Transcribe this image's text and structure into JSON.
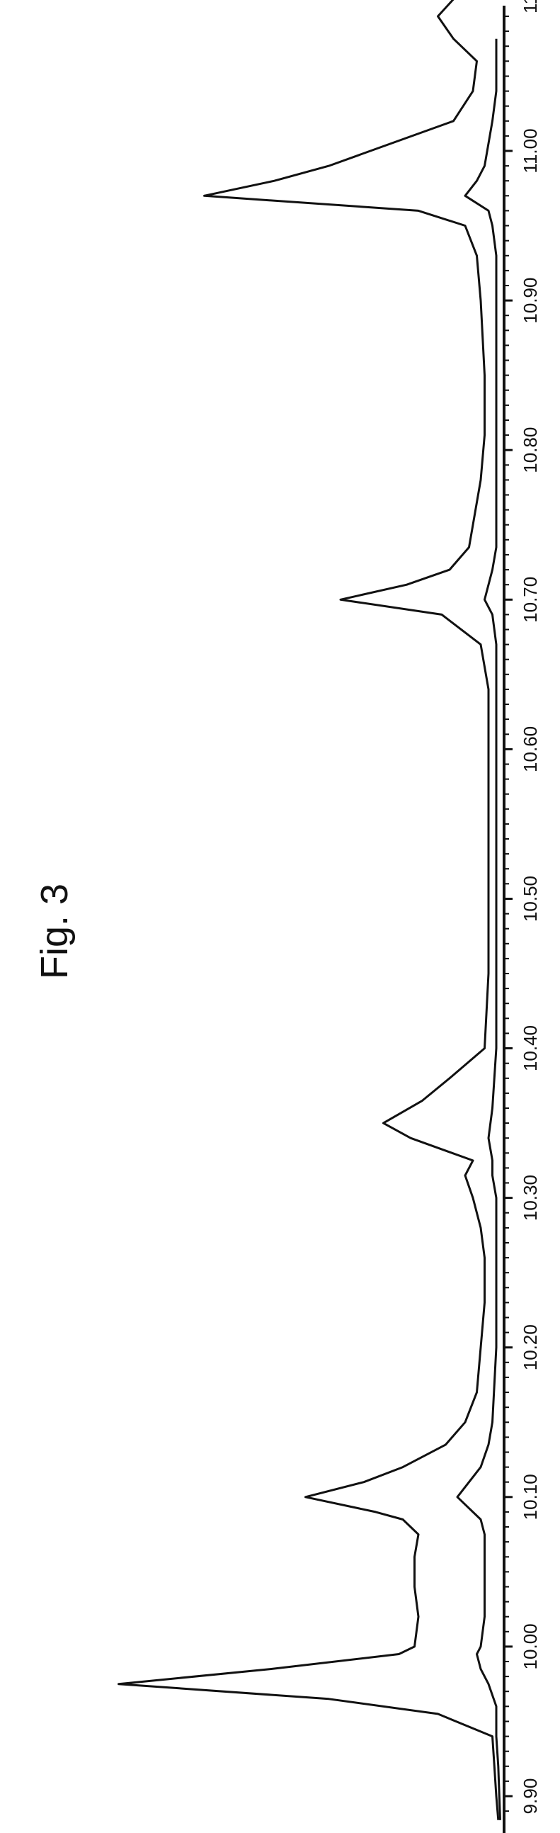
{
  "figure": {
    "title": "Fig. 3"
  },
  "chart_data": {
    "type": "line",
    "title": "Fig. 3",
    "xlabel": "",
    "ylabel": "",
    "x_ticks": [
      "9.90",
      "10.00",
      "10.10",
      "10.20",
      "10.30",
      "10.40",
      "10.50",
      "10.60",
      "10.70",
      "10.80",
      "10.90",
      "11.00",
      "11."
    ],
    "xlim": [
      9.884,
      11.13
    ],
    "ylim": [
      0,
      100
    ],
    "grid": false,
    "orientation": "rotated-90",
    "colors": {
      "line": "#111111",
      "axis": "#111111"
    },
    "series": [
      {
        "x": [
          9.884,
          9.9,
          9.92,
          9.94,
          9.955,
          9.965,
          9.975,
          9.985,
          9.995,
          10.0,
          10.02,
          10.04,
          10.06,
          10.075,
          10.085,
          10.09,
          10.1,
          10.11,
          10.12,
          10.135,
          10.15,
          10.17,
          10.2,
          10.23,
          10.26,
          10.28,
          10.3,
          10.315,
          10.325,
          10.34,
          10.35,
          10.365,
          10.38,
          10.4,
          10.45,
          10.5,
          10.55,
          10.6,
          10.64,
          10.67,
          10.69,
          10.7,
          10.71,
          10.72,
          10.735,
          10.75,
          10.78,
          10.81,
          10.85,
          10.9,
          10.93,
          10.95,
          10.96,
          10.97,
          10.98,
          10.99,
          11.02,
          11.04,
          11.06,
          11.075,
          11.09,
          11.11,
          11.13
        ],
        "values": [
          1.5,
          2.0,
          2.5,
          3.0,
          17,
          45,
          99,
          60,
          27,
          23,
          22,
          23,
          23,
          22,
          26,
          33,
          51,
          36,
          26,
          15,
          10,
          7,
          6,
          5,
          5,
          6,
          8,
          10,
          8,
          24,
          31,
          21,
          14,
          5,
          4,
          4,
          4,
          4,
          4,
          6,
          16,
          42,
          25,
          14,
          9,
          8,
          6,
          5,
          5,
          6,
          7,
          10,
          22,
          77,
          59,
          45,
          13,
          8,
          7,
          13,
          17,
          10,
          8
        ]
      },
      {
        "x": [
          9.884,
          9.92,
          9.94,
          9.96,
          9.975,
          9.985,
          9.995,
          10.0,
          10.02,
          10.04,
          10.06,
          10.075,
          10.085,
          10.09,
          10.1,
          10.11,
          10.12,
          10.135,
          10.15,
          10.2,
          10.25,
          10.28,
          10.3,
          10.315,
          10.325,
          10.34,
          10.36,
          10.4,
          10.45,
          10.5,
          10.55,
          10.6,
          10.64,
          10.67,
          10.69,
          10.7,
          10.71,
          10.72,
          10.735,
          10.75,
          10.78,
          10.81,
          10.85,
          10.9,
          10.93,
          10.95,
          10.96,
          10.97,
          10.98,
          10.99,
          11.02,
          11.04,
          11.06,
          11.075
        ],
        "values": [
          1.0,
          1.5,
          2.0,
          2.0,
          4,
          6,
          7,
          6,
          5,
          5,
          5,
          5,
          6,
          8,
          12,
          9,
          6,
          4,
          3,
          2,
          2,
          2,
          2,
          3,
          3,
          4,
          3,
          2,
          2,
          2,
          2,
          2,
          2,
          2,
          3,
          5,
          4,
          3,
          2,
          2,
          2,
          2,
          2,
          2,
          2,
          3,
          4,
          10,
          7,
          5,
          3,
          2,
          2,
          2
        ]
      }
    ]
  }
}
